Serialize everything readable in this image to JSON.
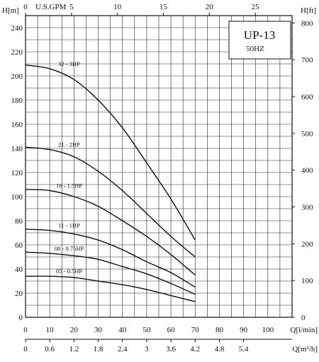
{
  "chart_data": {
    "type": "line",
    "title": "UP-13",
    "subtitle": "50HZ",
    "ylabel_left": "H[m]",
    "ylabel_right": "H[ft]",
    "xlabel_bottom": "Q[l/min]",
    "xlabel_m3h": "Q[m³/h]",
    "xlabel_top": "U.S.GPM",
    "xlim": [
      0,
      110
    ],
    "ylim": [
      0,
      250
    ],
    "ylim_ft": [
      0,
      820
    ],
    "gpm_lim": [
      0,
      29
    ],
    "m3h_lim": [
      0,
      6.6
    ],
    "grid": true,
    "y_ticks": [
      "0",
      "20",
      "40",
      "60",
      "80",
      "100",
      "120",
      "140",
      "160",
      "180",
      "200",
      "220",
      "240"
    ],
    "x_ticks": [
      "0",
      "10",
      "20",
      "30",
      "40",
      "50",
      "60",
      "70",
      "80",
      "90",
      "100"
    ],
    "ft_ticks": [
      "0",
      "100",
      "200",
      "300",
      "400",
      "500",
      "600",
      "700",
      "800"
    ],
    "gpm_ticks": [
      "0",
      "5",
      "10",
      "15",
      "20",
      "25"
    ],
    "m3h_ticks": [
      "0",
      "0.6",
      "1.2",
      "1.8",
      "2.4",
      "3",
      "3.6",
      "4.2",
      "4.8",
      "5.4"
    ],
    "series": [
      {
        "name": "32 - 3HP",
        "x": [
          0,
          10,
          20,
          30,
          40,
          50,
          60,
          70
        ],
        "y": [
          209,
          206,
          197,
          180,
          157,
          128,
          98,
          64
        ]
      },
      {
        "name": "21 - 2HP",
        "x": [
          0,
          10,
          20,
          30,
          40,
          50,
          60,
          70
        ],
        "y": [
          141,
          139,
          133,
          121,
          105,
          86,
          67,
          50
        ]
      },
      {
        "name": "16 - 1.5HP",
        "x": [
          0,
          10,
          20,
          30,
          40,
          50,
          60,
          70
        ],
        "y": [
          106,
          105,
          100,
          92,
          80,
          67,
          52,
          35
        ]
      },
      {
        "name": "11 - 1HP",
        "x": [
          0,
          10,
          20,
          30,
          40,
          50,
          60,
          70
        ],
        "y": [
          73,
          72,
          69,
          64,
          56,
          46,
          37,
          25
        ]
      },
      {
        "name": "08 - 0.75HP",
        "x": [
          0,
          10,
          20,
          30,
          40,
          50,
          60,
          70
        ],
        "y": [
          54,
          53,
          51,
          48,
          42,
          36,
          28,
          19
        ]
      },
      {
        "name": "05 - 0.5HP",
        "x": [
          0,
          10,
          20,
          30,
          40,
          50,
          60,
          70
        ],
        "y": [
          34,
          34,
          33,
          30,
          27,
          23,
          18,
          13
        ]
      }
    ]
  }
}
